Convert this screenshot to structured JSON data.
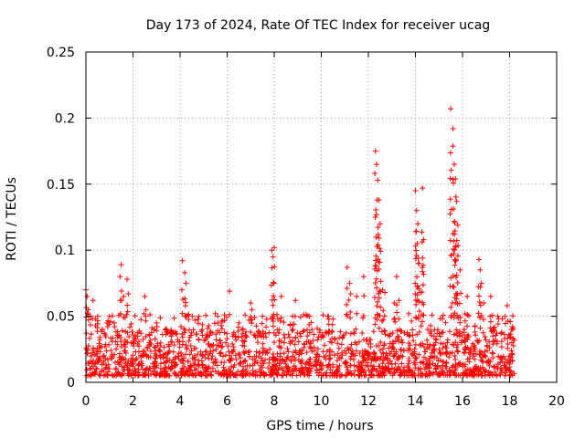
{
  "chart_data": {
    "type": "scatter",
    "title": "Day 173 of 2024, Rate Of TEC Index for receiver ucag",
    "xlabel": "GPS time / hours",
    "ylabel": "ROTI / TECUs",
    "xlim": [
      0,
      20
    ],
    "ylim": [
      0,
      0.25
    ],
    "xticks": [
      0,
      2,
      4,
      6,
      8,
      10,
      12,
      14,
      16,
      18,
      20
    ],
    "yticks": [
      0,
      0.05,
      0.1,
      0.15,
      0.2,
      0.25
    ],
    "xtick_labels": [
      "0",
      "2",
      "4",
      "6",
      "8",
      "10",
      "12",
      "14",
      "16",
      "18",
      "20"
    ],
    "ytick_labels": [
      "0",
      "0.05",
      "0.1",
      "0.15",
      "0.2",
      "0.25"
    ],
    "grid": true,
    "marker": "+",
    "color": "#ff0000",
    "series": [
      {
        "name": "ROTI",
        "baseline_band": [
          0.005,
          0.04
        ],
        "data_range_hours": [
          0,
          18.2
        ],
        "x": [
          0.0,
          0.05,
          0.1,
          0.2,
          0.3,
          0.4,
          0.5,
          0.7,
          0.9,
          1.0,
          1.2,
          1.45,
          1.5,
          1.6,
          1.75,
          1.8,
          2.0,
          2.2,
          2.5,
          2.55,
          2.9,
          3.0,
          3.4,
          3.6,
          4.1,
          4.2,
          4.25,
          4.8,
          5.5,
          5.6,
          6.1,
          6.5,
          7.0,
          7.05,
          7.5,
          7.9,
          7.95,
          8.0,
          8.3,
          8.9,
          9.5,
          10.3,
          10.5,
          11.1,
          11.2,
          11.25,
          11.5,
          11.8,
          12.3,
          12.35,
          12.4,
          12.45,
          12.5,
          12.6,
          12.7,
          13.1,
          13.2,
          13.3,
          14.0,
          14.05,
          14.1,
          14.15,
          14.2,
          14.3,
          14.35,
          15.5,
          15.6,
          15.65,
          15.7,
          15.75,
          15.8,
          15.9,
          16.2,
          16.7,
          16.75,
          16.8,
          16.9,
          17.2,
          17.5,
          17.9,
          18.1
        ],
        "y": [
          0.07,
          0.065,
          0.055,
          0.05,
          0.062,
          0.048,
          0.05,
          0.04,
          0.045,
          0.05,
          0.045,
          0.08,
          0.089,
          0.065,
          0.078,
          0.067,
          0.03,
          0.035,
          0.065,
          0.055,
          0.04,
          0.045,
          0.04,
          0.038,
          0.092,
          0.083,
          0.075,
          0.05,
          0.052,
          0.05,
          0.069,
          0.045,
          0.06,
          0.055,
          0.05,
          0.1,
          0.095,
          0.102,
          0.065,
          0.062,
          0.05,
          0.05,
          0.048,
          0.087,
          0.075,
          0.067,
          0.065,
          0.08,
          0.175,
          0.165,
          0.153,
          0.138,
          0.12,
          0.07,
          0.068,
          0.06,
          0.08,
          0.062,
          0.145,
          0.13,
          0.12,
          0.09,
          0.068,
          0.147,
          0.108,
          0.207,
          0.192,
          0.165,
          0.154,
          0.137,
          0.119,
          0.085,
          0.065,
          0.093,
          0.085,
          0.075,
          0.06,
          0.065,
          0.05,
          0.058,
          0.04
        ]
      }
    ]
  }
}
